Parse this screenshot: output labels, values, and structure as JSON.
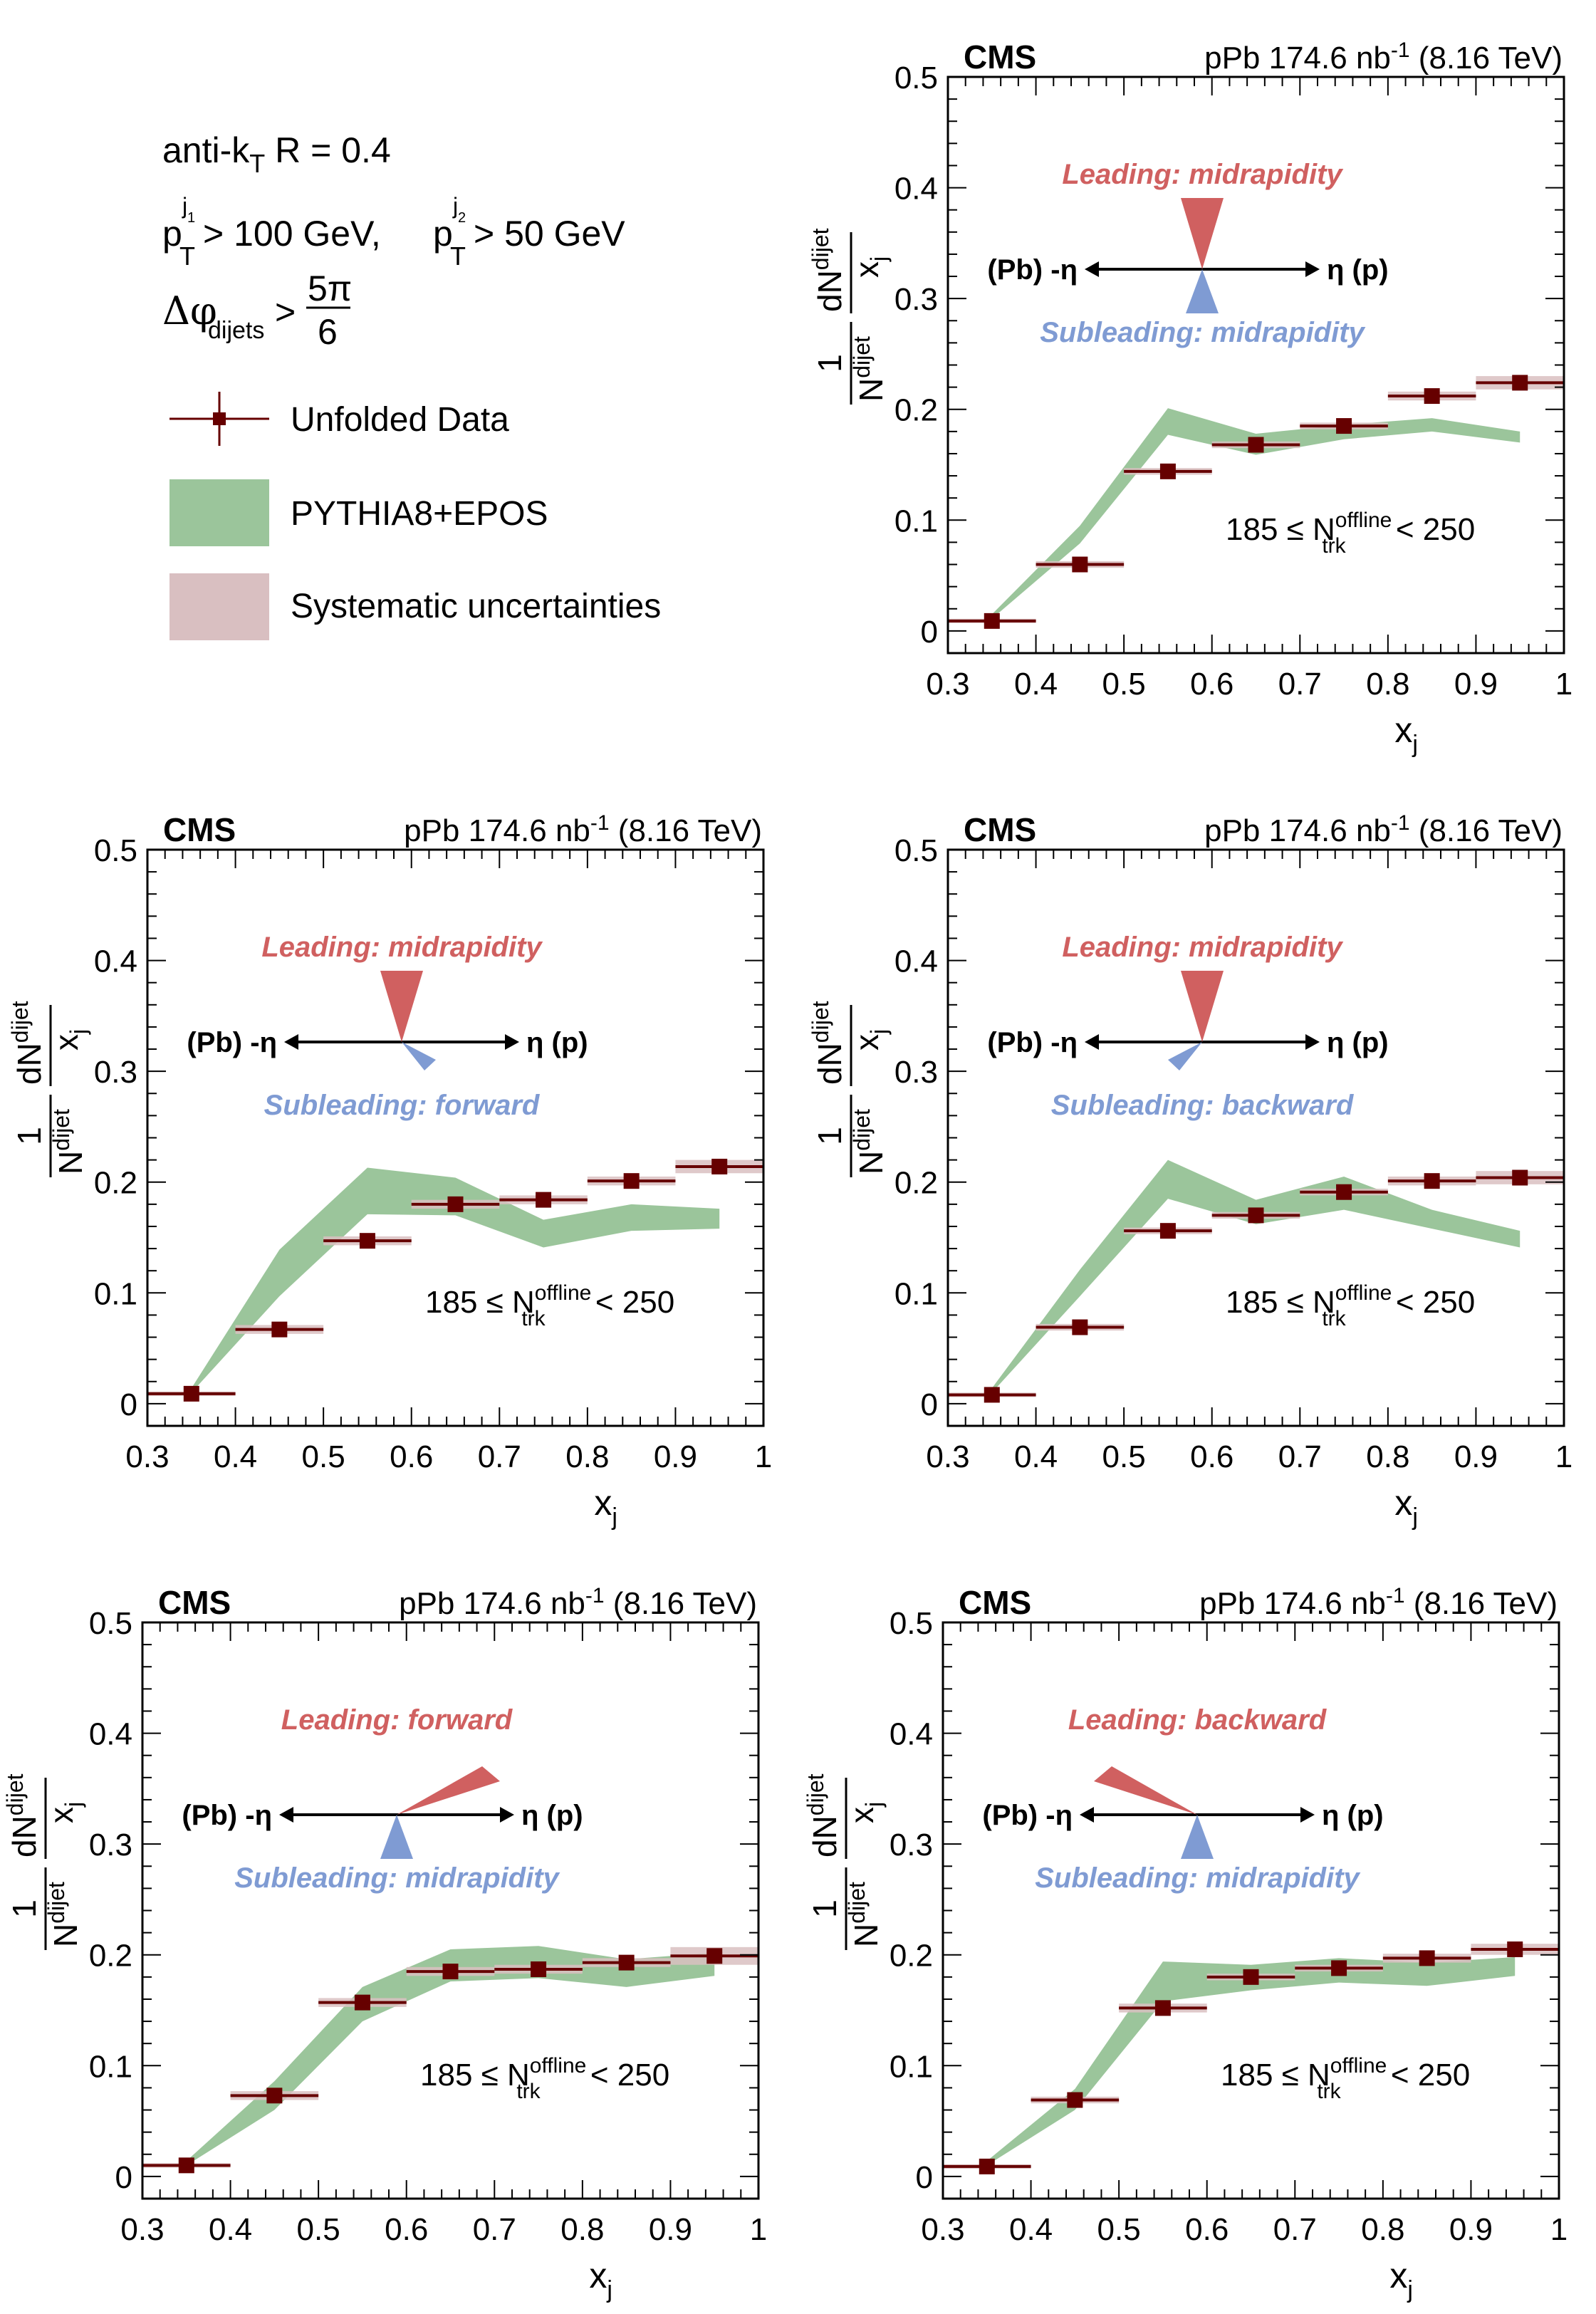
{
  "figure": {
    "experiment_label": "CMS",
    "lumi_label": "pPb 174.6 nb",
    "lumi_sup": "-1",
    "energy_label": "(8.16 TeV)",
    "ylabel_num_main": "dN",
    "ylabel_num_sub": "dijet",
    "ylabel_den_main": "x",
    "ylabel_den_sub": "j",
    "ylabel_pref_num": "1",
    "ylabel_pref_den_main": "N",
    "ylabel_pref_den_sub": "dijet",
    "xlabel_main": "x",
    "xlabel_sub": "j",
    "multiplicity_prefix": "185 ≤ N",
    "multiplicity_sup": "offline",
    "multiplicity_sub": "trk",
    "multiplicity_suffix": "< 250",
    "axis_left_label": "(Pb) -η",
    "axis_right_label": "η (p)",
    "colors": {
      "data_marker": "#660000",
      "systematic_band": "#d9bfc1",
      "pythia_band": "#9bc59b",
      "leading": "#d06060",
      "subleading": "#7f9bd3",
      "axis": "#000000"
    }
  },
  "legend": {
    "cuts": {
      "algo": "anti-k",
      "algo_sub": "T",
      "algo_rest": " R = 0.4",
      "pt1_p": "p",
      "pt1_sup": "j",
      "pt1_supsub": "1",
      "pt1_sub": "T",
      "pt1_rest": " > 100 GeV, ",
      "pt2_p": "p",
      "pt2_sup": "j",
      "pt2_supsub": "2",
      "pt2_sub": "T",
      "pt2_rest": " > 50 GeV",
      "dphi_main": "Δφ",
      "dphi_sub": "dijets",
      "dphi_gt": ">",
      "dphi_num": "5π",
      "dphi_den": "6"
    },
    "entries": [
      {
        "label": "Unfolded Data",
        "kind": "marker"
      },
      {
        "label": "PYTHIA8+EPOS",
        "kind": "band-green"
      },
      {
        "label": "Systematic uncertainties",
        "kind": "band-sys"
      }
    ]
  },
  "chart_data": [
    {
      "type": "scatter",
      "panel": "top-right",
      "title": "CMS pPb 174.6 nb^-1 (8.16 TeV)",
      "xlabel": "x_j",
      "ylabel": "1/N_dijet dN_dijet/x_j",
      "xlim": [
        0.3,
        1.0
      ],
      "ylim": [
        -0.02,
        0.5
      ],
      "xticks": [
        "0.3",
        "0.4",
        "0.5",
        "0.6",
        "0.7",
        "0.8",
        "0.9",
        "1"
      ],
      "yticks": [
        "0",
        "0.1",
        "0.2",
        "0.3",
        "0.4",
        "0.5"
      ],
      "leading_text": "Leading: midrapidity",
      "subleading_text": "Subleading: midrapidity",
      "leading_direction": "midrapidity",
      "subleading_direction": "midrapidity",
      "x": [
        0.35,
        0.45,
        0.55,
        0.65,
        0.75,
        0.85,
        0.95
      ],
      "x_err": 0.05,
      "series": [
        {
          "name": "Unfolded Data",
          "values": [
            0.009,
            0.06,
            0.144,
            0.168,
            0.185,
            0.212,
            0.224
          ],
          "sys": [
            0.002,
            0.003,
            0.003,
            0.003,
            0.003,
            0.004,
            0.006
          ]
        },
        {
          "name": "PYTHIA8+EPOS",
          "low": [
            0.011,
            0.079,
            0.177,
            0.159,
            0.173,
            0.18,
            0.17
          ],
          "high": [
            0.015,
            0.095,
            0.201,
            0.178,
            0.186,
            0.192,
            0.18
          ]
        }
      ]
    },
    {
      "type": "scatter",
      "panel": "middle-left",
      "title": "CMS pPb 174.6 nb^-1 (8.16 TeV)",
      "xlabel": "x_j",
      "ylabel": "1/N_dijet dN_dijet/x_j",
      "xlim": [
        0.3,
        1.0
      ],
      "ylim": [
        -0.02,
        0.5
      ],
      "xticks": [
        "0.3",
        "0.4",
        "0.5",
        "0.6",
        "0.7",
        "0.8",
        "0.9",
        "1"
      ],
      "yticks": [
        "0",
        "0.1",
        "0.2",
        "0.3",
        "0.4",
        "0.5"
      ],
      "leading_text": "Leading: midrapidity",
      "subleading_text": "Subleading: forward",
      "leading_direction": "midrapidity",
      "subleading_direction": "forward",
      "x": [
        0.35,
        0.45,
        0.55,
        0.65,
        0.75,
        0.85,
        0.95
      ],
      "x_err": 0.05,
      "series": [
        {
          "name": "Unfolded Data",
          "values": [
            0.009,
            0.067,
            0.147,
            0.18,
            0.184,
            0.201,
            0.214
          ],
          "sys": [
            0.002,
            0.004,
            0.004,
            0.004,
            0.004,
            0.004,
            0.006
          ]
        },
        {
          "name": "PYTHIA8+EPOS",
          "low": [
            0.01,
            0.097,
            0.171,
            0.17,
            0.141,
            0.156,
            0.158
          ],
          "high": [
            0.014,
            0.139,
            0.213,
            0.204,
            0.166,
            0.18,
            0.176
          ]
        }
      ]
    },
    {
      "type": "scatter",
      "panel": "middle-right",
      "title": "CMS pPb 174.6 nb^-1 (8.16 TeV)",
      "xlabel": "x_j",
      "ylabel": "1/N_dijet dN_dijet/x_j",
      "xlim": [
        0.3,
        1.0
      ],
      "ylim": [
        -0.02,
        0.5
      ],
      "xticks": [
        "0.3",
        "0.4",
        "0.5",
        "0.6",
        "0.7",
        "0.8",
        "0.9",
        "1"
      ],
      "yticks": [
        "0",
        "0.1",
        "0.2",
        "0.3",
        "0.4",
        "0.5"
      ],
      "leading_text": "Leading: midrapidity",
      "subleading_text": "Subleading: backward",
      "leading_direction": "midrapidity",
      "subleading_direction": "backward",
      "x": [
        0.35,
        0.45,
        0.55,
        0.65,
        0.75,
        0.85,
        0.95
      ],
      "x_err": 0.05,
      "series": [
        {
          "name": "Unfolded Data",
          "values": [
            0.008,
            0.069,
            0.156,
            0.17,
            0.191,
            0.201,
            0.204
          ],
          "sys": [
            0.002,
            0.003,
            0.003,
            0.003,
            0.003,
            0.004,
            0.006
          ]
        },
        {
          "name": "PYTHIA8+EPOS",
          "low": [
            0.01,
            0.097,
            0.185,
            0.162,
            0.175,
            0.158,
            0.141
          ],
          "high": [
            0.014,
            0.121,
            0.22,
            0.184,
            0.205,
            0.175,
            0.156
          ]
        }
      ]
    },
    {
      "type": "scatter",
      "panel": "bottom-left",
      "title": "CMS pPb 174.6 nb^-1 (8.16 TeV)",
      "xlabel": "x_j",
      "ylabel": "1/N_dijet dN_dijet/x_j",
      "xlim": [
        0.3,
        1.0
      ],
      "ylim": [
        -0.02,
        0.5
      ],
      "xticks": [
        "0.3",
        "0.4",
        "0.5",
        "0.6",
        "0.7",
        "0.8",
        "0.9",
        "1"
      ],
      "yticks": [
        "0",
        "0.1",
        "0.2",
        "0.3",
        "0.4",
        "0.5"
      ],
      "leading_text": "Leading: forward",
      "subleading_text": "Subleading: midrapidity",
      "leading_direction": "forward",
      "subleading_direction": "midrapidity",
      "x": [
        0.35,
        0.45,
        0.55,
        0.65,
        0.75,
        0.85,
        0.95
      ],
      "x_err": 0.05,
      "series": [
        {
          "name": "Unfolded Data",
          "values": [
            0.01,
            0.073,
            0.157,
            0.185,
            0.187,
            0.193,
            0.199
          ],
          "sys": [
            0.002,
            0.004,
            0.004,
            0.004,
            0.004,
            0.004,
            0.008
          ]
        },
        {
          "name": "PYTHIA8+EPOS",
          "low": [
            0.01,
            0.06,
            0.14,
            0.176,
            0.179,
            0.171,
            0.181
          ],
          "high": [
            0.014,
            0.086,
            0.171,
            0.205,
            0.208,
            0.196,
            0.202
          ]
        }
      ]
    },
    {
      "type": "scatter",
      "panel": "bottom-right",
      "title": "CMS pPb 174.6 nb^-1 (8.16 TeV)",
      "xlabel": "x_j",
      "ylabel": "1/N_dijet dN_dijet/x_j",
      "xlim": [
        0.3,
        1.0
      ],
      "ylim": [
        -0.02,
        0.5
      ],
      "xticks": [
        "0.3",
        "0.4",
        "0.5",
        "0.6",
        "0.7",
        "0.8",
        "0.9",
        "1"
      ],
      "yticks": [
        "0",
        "0.1",
        "0.2",
        "0.3",
        "0.4",
        "0.5"
      ],
      "leading_text": "Leading: backward",
      "subleading_text": "Subleading: midrapidity",
      "leading_direction": "backward",
      "subleading_direction": "midrapidity",
      "x": [
        0.35,
        0.45,
        0.55,
        0.65,
        0.75,
        0.85,
        0.95
      ],
      "x_err": 0.05,
      "series": [
        {
          "name": "Unfolded Data",
          "values": [
            0.009,
            0.069,
            0.152,
            0.18,
            0.188,
            0.197,
            0.205
          ],
          "sys": [
            0.002,
            0.003,
            0.004,
            0.003,
            0.003,
            0.004,
            0.005
          ]
        },
        {
          "name": "PYTHIA8+EPOS",
          "low": [
            0.01,
            0.06,
            0.158,
            0.168,
            0.175,
            0.172,
            0.181
          ],
          "high": [
            0.014,
            0.079,
            0.194,
            0.191,
            0.197,
            0.193,
            0.198
          ]
        }
      ]
    }
  ]
}
